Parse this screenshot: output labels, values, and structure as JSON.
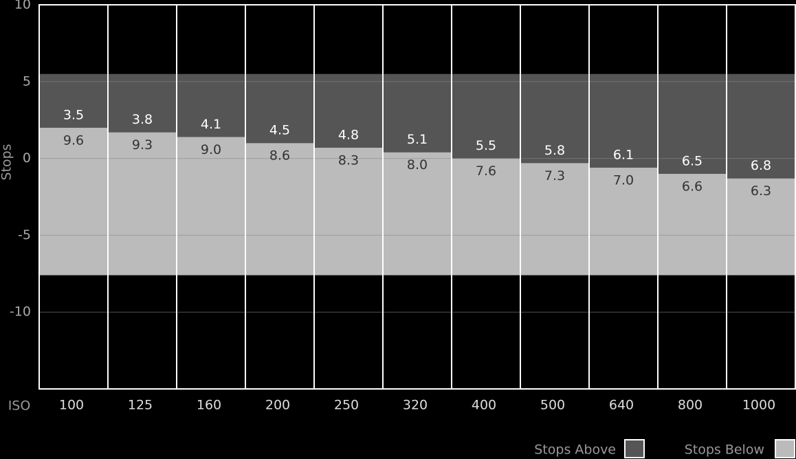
{
  "chart_data": {
    "type": "bar",
    "x_label": "ISO",
    "y_label": "Stops",
    "categories": [
      "100",
      "125",
      "160",
      "200",
      "250",
      "320",
      "400",
      "500",
      "640",
      "800",
      "1000"
    ],
    "series": [
      {
        "name": "Stops Above",
        "color": "#555555",
        "values": [
          3.5,
          3.8,
          4.1,
          4.5,
          4.8,
          5.1,
          5.5,
          5.8,
          6.1,
          6.5,
          6.8
        ]
      },
      {
        "name": "Stops Below",
        "color": "#bbbbbb",
        "values": [
          9.6,
          9.3,
          9,
          8.6,
          8.3,
          8,
          7.6,
          7.3,
          7,
          6.6,
          6.3
        ],
        "value_labels": [
          "9.6",
          "9.3",
          "9.0",
          "8.6",
          "8.3",
          "8.0",
          "7.6",
          "7.3",
          "7.0",
          "6.6",
          "6.3"
        ]
      }
    ],
    "ylim": [
      -15,
      10
    ],
    "yticks": [
      -10,
      -5,
      0,
      5,
      10
    ],
    "grid": true,
    "legend": "bottom-right"
  }
}
